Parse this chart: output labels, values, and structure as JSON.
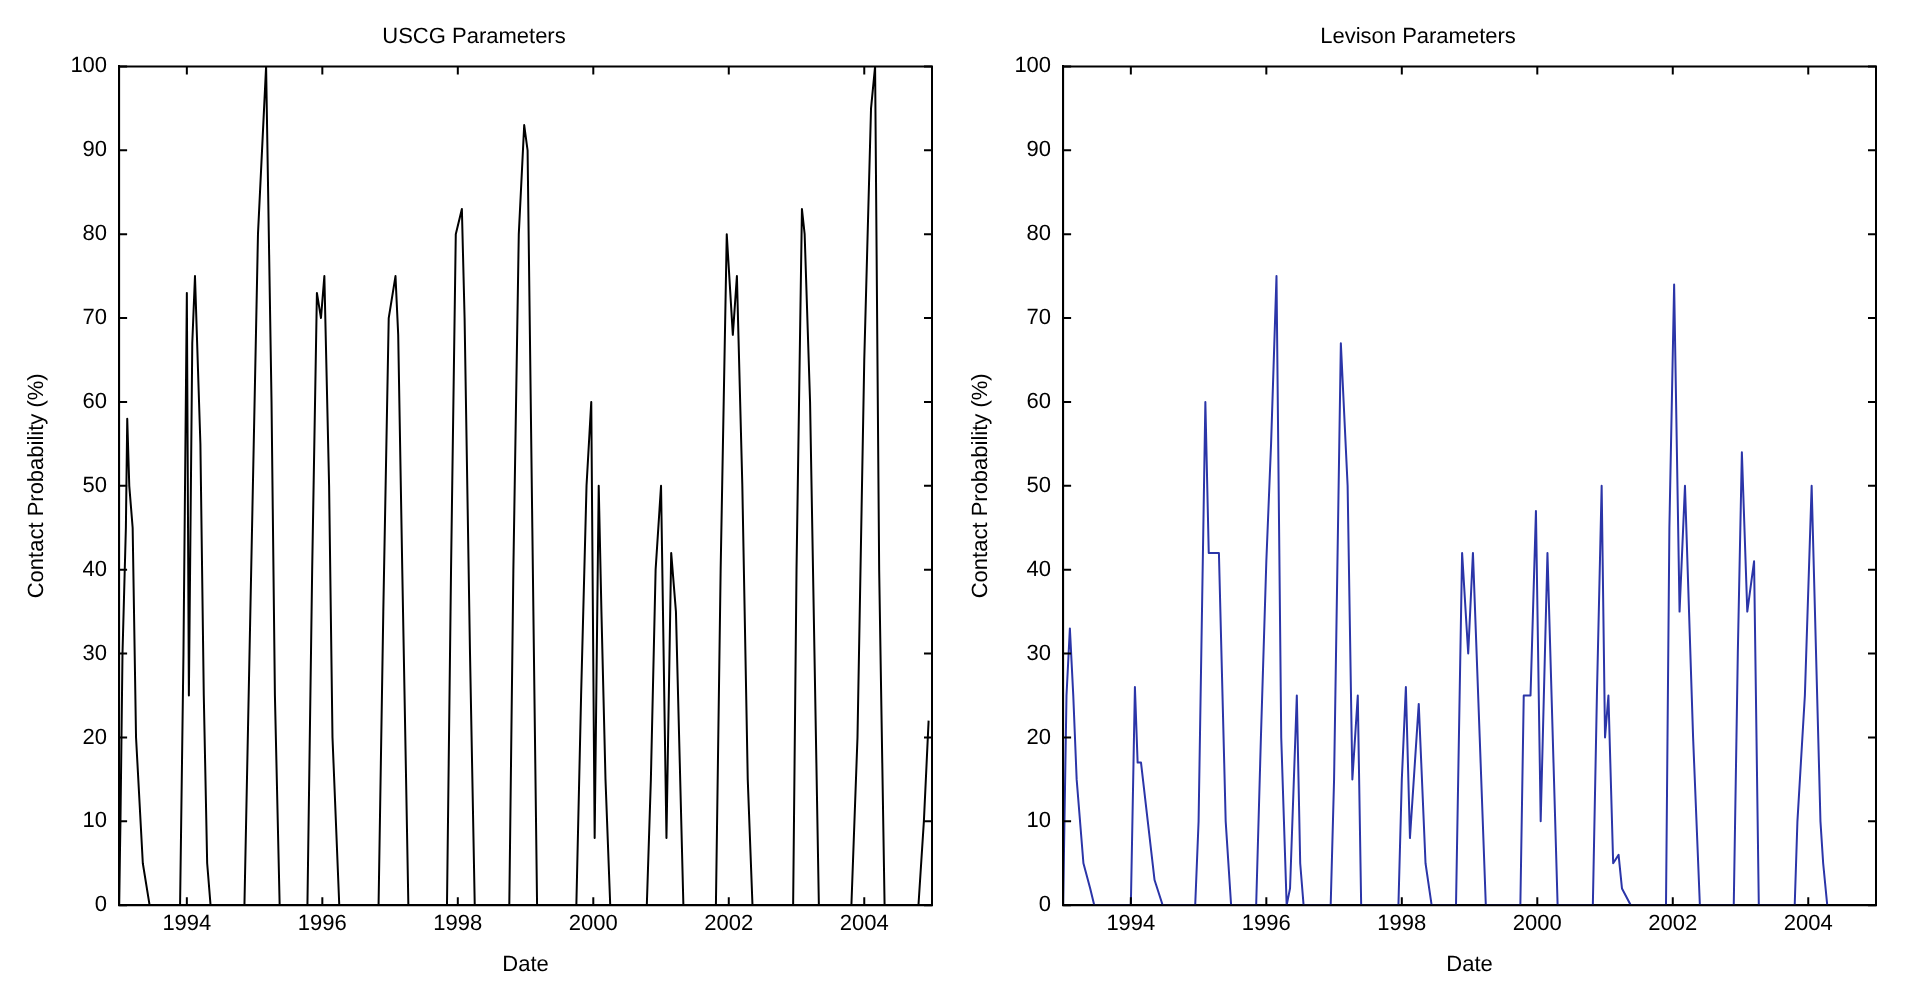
{
  "chart_data": [
    {
      "type": "line",
      "title": "USCG Parameters",
      "xlabel": "Date",
      "ylabel": "Contact Probability (%)",
      "xlim": [
        1993,
        2005
      ],
      "ylim": [
        0,
        100
      ],
      "xticks": [
        1994,
        1996,
        1998,
        2000,
        2002,
        2004
      ],
      "yticks": [
        0,
        10,
        20,
        30,
        40,
        50,
        60,
        70,
        80,
        90,
        100
      ],
      "grid": false,
      "legend": false,
      "series": [
        {
          "color": "#000000",
          "x": [
            1993.0,
            1993.02,
            1993.05,
            1993.1,
            1993.12,
            1993.15,
            1993.2,
            1993.25,
            1993.35,
            1993.45,
            1993.9,
            1993.95,
            1994.0,
            1994.03,
            1994.08,
            1994.12,
            1994.2,
            1994.25,
            1994.3,
            1994.35,
            1994.85,
            1994.95,
            1995.05,
            1995.17,
            1995.2,
            1995.25,
            1995.3,
            1995.37,
            1995.78,
            1995.85,
            1995.92,
            1995.98,
            1996.03,
            1996.1,
            1996.15,
            1996.25,
            1996.83,
            1996.9,
            1996.98,
            1997.08,
            1997.12,
            1997.18,
            1997.27,
            1997.84,
            1997.9,
            1997.97,
            1998.06,
            1998.1,
            1998.18,
            1998.25,
            1998.76,
            1998.82,
            1998.9,
            1998.98,
            1999.03,
            1999.1,
            1999.17,
            1999.75,
            1999.82,
            1999.9,
            1999.97,
            2000.02,
            2000.08,
            2000.12,
            2000.18,
            2000.25,
            2000.79,
            2000.85,
            2000.92,
            2001.0,
            2001.08,
            2001.15,
            2001.22,
            2001.33,
            2001.81,
            2001.88,
            2001.97,
            2002.06,
            2002.12,
            2002.2,
            2002.28,
            2002.35,
            2002.95,
            2003.0,
            2003.08,
            2003.12,
            2003.2,
            2003.33,
            2003.81,
            2003.9,
            2004.0,
            2004.1,
            2004.16,
            2004.22,
            2004.3,
            2004.8,
            2004.88,
            2004.95
          ],
          "values": [
            0,
            10,
            30,
            45,
            58,
            50,
            45,
            20,
            5,
            0,
            0,
            30,
            73,
            25,
            67,
            75,
            55,
            25,
            5,
            0,
            0,
            40,
            80,
            100,
            85,
            60,
            25,
            0,
            0,
            40,
            73,
            70,
            75,
            50,
            20,
            0,
            0,
            35,
            70,
            75,
            68,
            40,
            0,
            0,
            40,
            80,
            83,
            70,
            30,
            0,
            0,
            40,
            80,
            93,
            90,
            45,
            0,
            0,
            25,
            50,
            60,
            8,
            50,
            35,
            15,
            0,
            0,
            15,
            40,
            50,
            8,
            42,
            35,
            0,
            0,
            40,
            80,
            68,
            75,
            50,
            15,
            0,
            0,
            40,
            83,
            80,
            60,
            0,
            0,
            20,
            65,
            95,
            100,
            40,
            0,
            0,
            10,
            22
          ]
        }
      ]
    },
    {
      "type": "line",
      "title": "Levison Parameters",
      "xlabel": "Date",
      "ylabel": "Contact Probability (%)",
      "xlim": [
        1993,
        2005
      ],
      "ylim": [
        0,
        100
      ],
      "xticks": [
        1994,
        1996,
        1998,
        2000,
        2002,
        2004
      ],
      "yticks": [
        0,
        10,
        20,
        30,
        40,
        50,
        60,
        70,
        80,
        90,
        100
      ],
      "grid": false,
      "legend": false,
      "series": [
        {
          "color": "#2b35a8",
          "x": [
            1993.0,
            1993.05,
            1993.1,
            1993.15,
            1993.2,
            1993.3,
            1993.4,
            1993.46,
            1994.0,
            1994.06,
            1994.1,
            1994.15,
            1994.25,
            1994.35,
            1994.47,
            1994.95,
            1995.0,
            1995.1,
            1995.15,
            1995.3,
            1995.4,
            1995.48,
            1995.85,
            1995.92,
            1996.0,
            1996.07,
            1996.15,
            1996.22,
            1996.3,
            1996.35,
            1996.45,
            1996.5,
            1996.55,
            1996.95,
            1997.0,
            1997.1,
            1997.2,
            1997.27,
            1997.35,
            1997.4,
            1997.95,
            1998.0,
            1998.06,
            1998.12,
            1998.25,
            1998.35,
            1998.44,
            1998.8,
            1998.89,
            1998.98,
            1999.05,
            1999.15,
            1999.24,
            1999.75,
            1999.8,
            1999.9,
            1999.98,
            2000.05,
            2000.15,
            2000.3,
            2000.82,
            2000.88,
            2000.95,
            2001.0,
            2001.05,
            2001.12,
            2001.2,
            2001.25,
            2001.38,
            2001.9,
            2001.95,
            2002.02,
            2002.1,
            2002.18,
            2002.3,
            2002.4,
            2002.9,
            2002.96,
            2003.02,
            2003.1,
            2003.2,
            2003.27,
            2003.8,
            2003.84,
            2003.95,
            2004.05,
            2004.18,
            2004.22,
            2004.28
          ],
          "values": [
            0,
            25,
            33,
            25,
            15,
            5,
            2,
            0,
            0,
            26,
            17,
            17,
            10,
            3,
            0,
            0,
            10,
            60,
            42,
            42,
            10,
            0,
            0,
            20,
            41,
            55,
            75,
            20,
            0,
            2,
            25,
            5,
            0,
            0,
            15,
            67,
            50,
            15,
            25,
            0,
            0,
            15,
            26,
            8,
            24,
            5,
            0,
            0,
            42,
            30,
            42,
            20,
            0,
            0,
            25,
            25,
            47,
            10,
            42,
            0,
            0,
            25,
            50,
            20,
            25,
            5,
            6,
            2,
            0,
            0,
            45,
            74,
            35,
            50,
            20,
            0,
            0,
            30,
            54,
            35,
            41,
            0,
            0,
            10,
            25,
            50,
            10,
            5,
            0
          ]
        }
      ]
    }
  ]
}
